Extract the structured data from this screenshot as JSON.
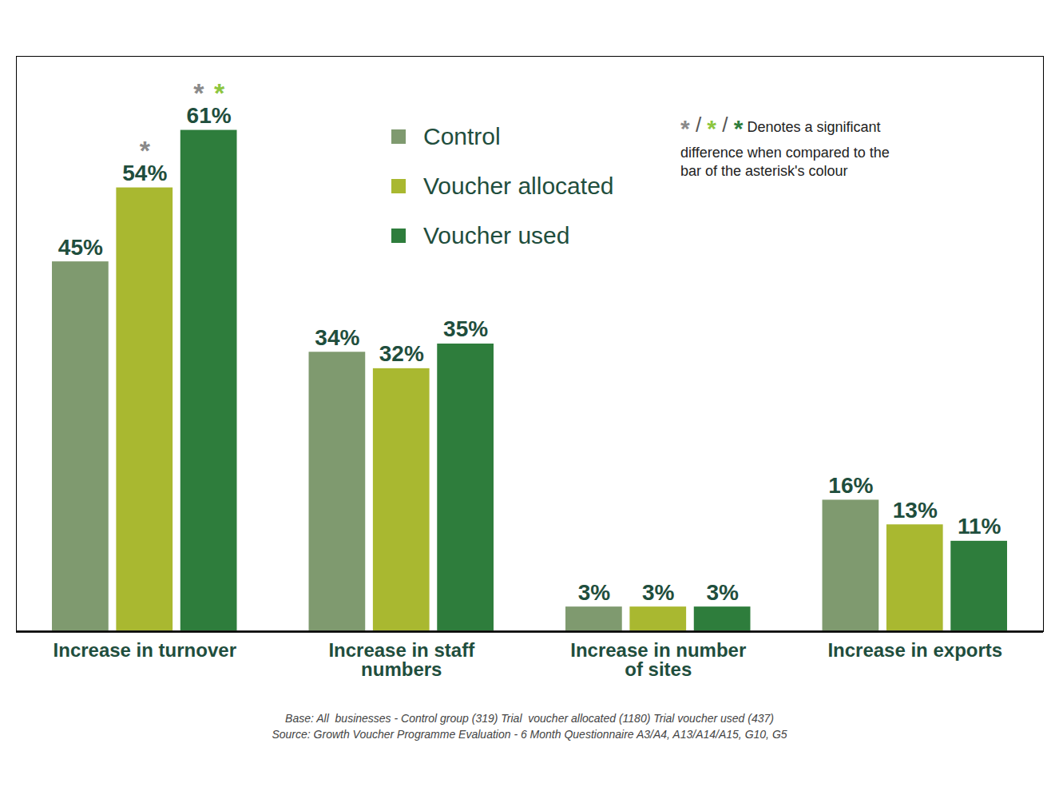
{
  "chart_data": {
    "type": "bar",
    "categories": [
      "Increase in turnover",
      "Increase in staff numbers",
      "Increase in number of sites",
      "Increase in exports"
    ],
    "series": [
      {
        "name": "Control",
        "color": "#7f9a6f",
        "values": [
          45,
          34,
          3,
          16
        ],
        "value_labels": [
          "45%",
          "34%",
          "3%",
          "16%"
        ]
      },
      {
        "name": "Voucher allocated",
        "color": "#a9b830",
        "values": [
          54,
          32,
          3,
          13
        ],
        "value_labels": [
          "54%",
          "32%",
          "3%",
          "13%"
        ]
      },
      {
        "name": "Voucher used",
        "color": "#2e7d3c",
        "values": [
          61,
          35,
          3,
          11
        ],
        "value_labels": [
          "61%",
          "35%",
          "3%",
          "11%"
        ]
      }
    ],
    "ylim": [
      0,
      70
    ],
    "tick_labels": "x",
    "data_labels": true,
    "legend": "top",
    "annotations": [
      {
        "category": "Increase in turnover",
        "series": "Voucher allocated",
        "text": "*",
        "color": "#8a8a8a"
      },
      {
        "category": "Increase in turnover",
        "series": "Voucher used",
        "text": "*",
        "color": "#8a8a8a"
      },
      {
        "category": "Increase in turnover",
        "series": "Voucher used",
        "text": "*",
        "color": "#8dc63f"
      }
    ],
    "significance_note": {
      "symbols": [
        {
          "text": "*",
          "color": "#8a8a8a"
        },
        {
          "text": "*",
          "color": "#8dc63f"
        },
        {
          "text": "*",
          "color": "#2e7d3c"
        }
      ],
      "separator": "/",
      "text": "Denotes a significant difference when compared to the bar of the asterisk's colour"
    },
    "caption": [
      "Base: All  businesses - Control group (319) Trial  voucher allocated (1180) Trial voucher used (437)",
      "Source: Growth Voucher Programme Evaluation - 6 Month Questionnaire A3/A4, A13/A14/A15, G10, G5"
    ]
  }
}
